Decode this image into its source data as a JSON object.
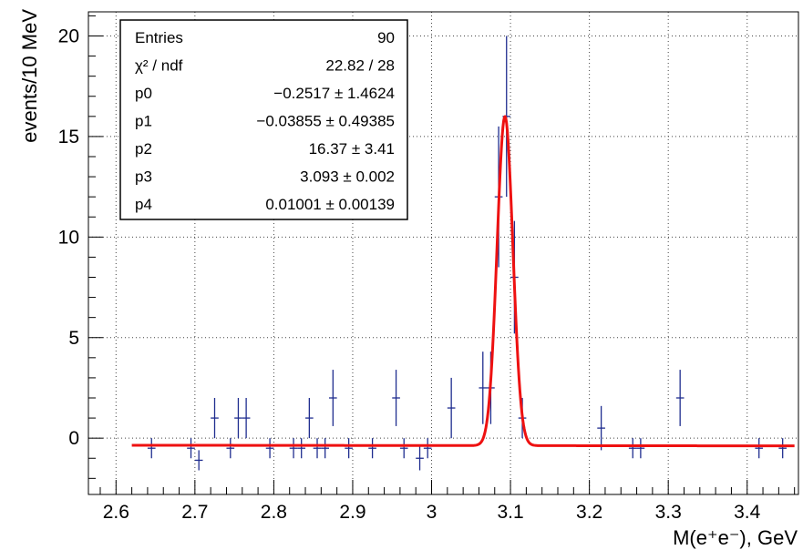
{
  "chart_data": {
    "type": "scatter",
    "xlabel": "M(e⁺e⁻), GeV",
    "ylabel": "events/10 MeV",
    "xlim": [
      2.565,
      3.465
    ],
    "ylim": [
      -2.8,
      21.2
    ],
    "grid": true,
    "x_ticks": [
      2.6,
      2.7,
      2.8,
      2.9,
      3.0,
      3.1,
      3.2,
      3.3,
      3.4
    ],
    "x_tick_labels": [
      "2.6",
      "2.7",
      "2.8",
      "2.9",
      "3",
      "3.1",
      "3.2",
      "3.3",
      "3.4"
    ],
    "y_ticks": [
      0,
      5,
      10,
      15,
      20
    ],
    "y_tick_labels": [
      "0",
      "5",
      "10",
      "15",
      "20"
    ],
    "colors": {
      "data": "#1f2d8f",
      "fit": "#ee1111"
    },
    "series": [
      {
        "type": "errorbar",
        "color": "#1f2d8f",
        "points": [
          {
            "x": 2.645,
            "y": -0.5,
            "xerr": 0.005,
            "yerr": 0.5
          },
          {
            "x": 2.695,
            "y": -0.5,
            "xerr": 0.005,
            "yerr": 0.5
          },
          {
            "x": 2.705,
            "y": -1.1,
            "xerr": 0.005,
            "yerr": 0.5
          },
          {
            "x": 2.725,
            "y": 1.0,
            "xerr": 0.005,
            "yerr": 1.0
          },
          {
            "x": 2.745,
            "y": -0.5,
            "xerr": 0.005,
            "yerr": 0.5
          },
          {
            "x": 2.755,
            "y": 1.0,
            "xerr": 0.005,
            "yerr": 1.0
          },
          {
            "x": 2.765,
            "y": 1.0,
            "xerr": 0.005,
            "yerr": 1.0
          },
          {
            "x": 2.795,
            "y": -0.5,
            "xerr": 0.005,
            "yerr": 0.5
          },
          {
            "x": 2.825,
            "y": -0.5,
            "xerr": 0.005,
            "yerr": 0.5
          },
          {
            "x": 2.835,
            "y": -0.5,
            "xerr": 0.005,
            "yerr": 0.5
          },
          {
            "x": 2.845,
            "y": 1.0,
            "xerr": 0.005,
            "yerr": 1.0
          },
          {
            "x": 2.855,
            "y": -0.5,
            "xerr": 0.005,
            "yerr": 0.5
          },
          {
            "x": 2.865,
            "y": -0.5,
            "xerr": 0.005,
            "yerr": 0.5
          },
          {
            "x": 2.875,
            "y": 2.0,
            "xerr": 0.005,
            "yerr": 1.4
          },
          {
            "x": 2.895,
            "y": -0.5,
            "xerr": 0.005,
            "yerr": 0.5
          },
          {
            "x": 2.925,
            "y": -0.5,
            "xerr": 0.005,
            "yerr": 0.5
          },
          {
            "x": 2.955,
            "y": 2.0,
            "xerr": 0.005,
            "yerr": 1.4
          },
          {
            "x": 2.965,
            "y": -0.5,
            "xerr": 0.005,
            "yerr": 0.5
          },
          {
            "x": 2.985,
            "y": -1.0,
            "xerr": 0.005,
            "yerr": 0.6
          },
          {
            "x": 2.995,
            "y": -0.5,
            "xerr": 0.005,
            "yerr": 0.5
          },
          {
            "x": 3.025,
            "y": 1.5,
            "xerr": 0.005,
            "yerr": 1.5
          },
          {
            "x": 3.065,
            "y": 2.5,
            "xerr": 0.005,
            "yerr": 1.8
          },
          {
            "x": 3.075,
            "y": 2.5,
            "xerr": 0.005,
            "yerr": 1.8
          },
          {
            "x": 3.085,
            "y": 12.0,
            "xerr": 0.005,
            "yerr": 3.5
          },
          {
            "x": 3.095,
            "y": 16.0,
            "xerr": 0.005,
            "yerr": 4.0
          },
          {
            "x": 3.105,
            "y": 8.0,
            "xerr": 0.005,
            "yerr": 2.8
          },
          {
            "x": 3.115,
            "y": 1.0,
            "xerr": 0.005,
            "yerr": 1.0
          },
          {
            "x": 3.215,
            "y": 0.5,
            "xerr": 0.005,
            "yerr": 1.1
          },
          {
            "x": 3.255,
            "y": -0.5,
            "xerr": 0.005,
            "yerr": 0.5
          },
          {
            "x": 3.265,
            "y": -0.5,
            "xerr": 0.005,
            "yerr": 0.5
          },
          {
            "x": 3.315,
            "y": 2.0,
            "xerr": 0.005,
            "yerr": 1.4
          },
          {
            "x": 3.415,
            "y": -0.5,
            "xerr": 0.005,
            "yerr": 0.5
          },
          {
            "x": 3.445,
            "y": -0.5,
            "xerr": 0.005,
            "yerr": 0.5
          }
        ]
      },
      {
        "type": "line",
        "color": "#ee1111",
        "function": "pol1 + gaus",
        "x_range": [
          2.62,
          3.46
        ],
        "params": {
          "p0": -0.2517,
          "p1": -0.03855,
          "p2": 16.37,
          "p3": 3.093,
          "p4": 0.01001
        }
      }
    ],
    "stats_box": {
      "position": "top-left",
      "rows": [
        {
          "label": "Entries",
          "value": "90"
        },
        {
          "label": "χ² / ndf",
          "value": "22.82 / 28"
        },
        {
          "label": "p0",
          "value": "−0.2517 ± 1.4624"
        },
        {
          "label": "p1",
          "value": "−0.03855 ± 0.49385"
        },
        {
          "label": "p2",
          "value": "16.37 ± 3.41"
        },
        {
          "label": "p3",
          "value": "3.093 ± 0.002"
        },
        {
          "label": "p4",
          "value": "0.01001 ± 0.00139"
        }
      ]
    }
  }
}
